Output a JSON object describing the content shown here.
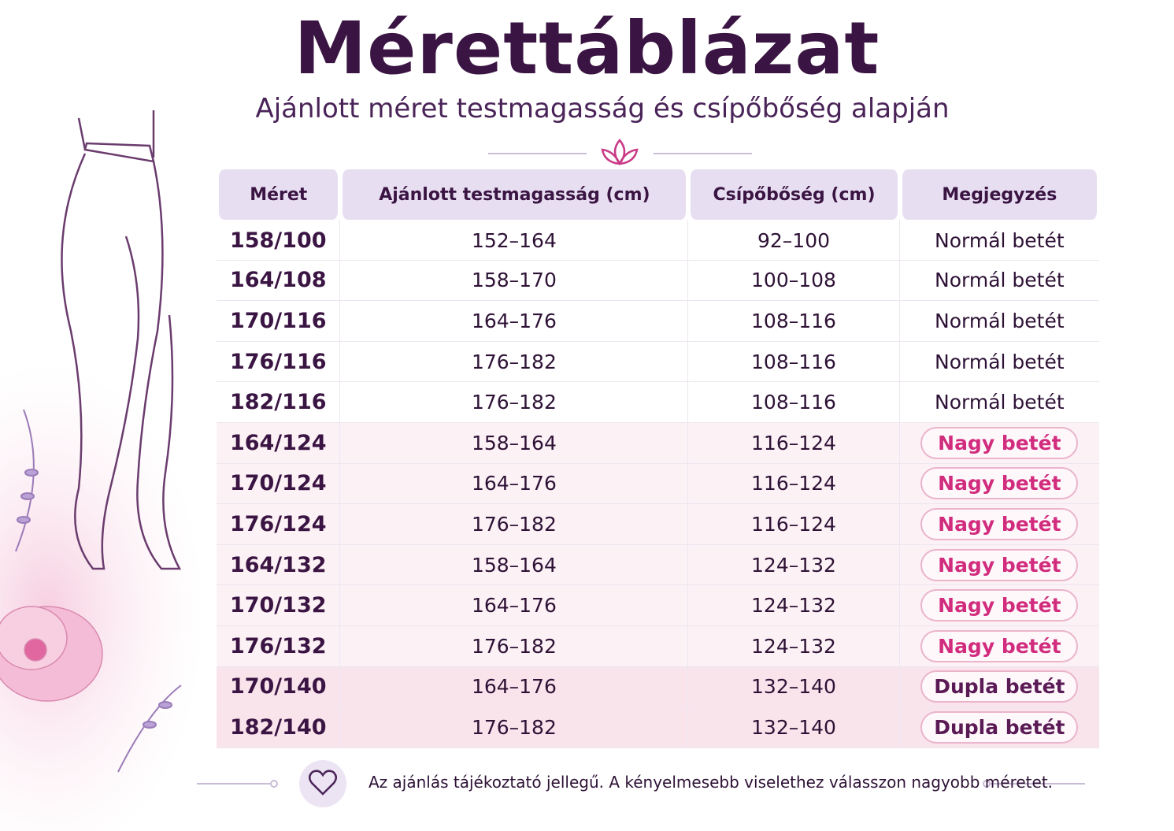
{
  "header": {
    "title": "Mérettáblázat",
    "subtitle": "Ajánlott méret testmagasság és csípőbőség alapján"
  },
  "table": {
    "columns": [
      "Méret",
      "Ajánlott testmagasság (cm)",
      "Csípőbőség (cm)",
      "Megjegyzés"
    ],
    "rows": [
      [
        "158/100",
        "152–164",
        "92–100",
        "Normál betét"
      ],
      [
        "164/108",
        "158–170",
        "100–108",
        "Normál betét"
      ],
      [
        "170/116",
        "164–176",
        "108–116",
        "Normál betét"
      ],
      [
        "176/116",
        "176–182",
        "108–116",
        "Normál betét"
      ],
      [
        "182/116",
        "176–182",
        "108–116",
        "Normál betét"
      ],
      [
        "164/124",
        "158–164",
        "116–124",
        "Nagy betét"
      ],
      [
        "170/124",
        "164–176",
        "116–124",
        "Nagy betét"
      ],
      [
        "176/124",
        "176–182",
        "116–124",
        "Nagy betét"
      ],
      [
        "164/132",
        "158–164",
        "124–132",
        "Nagy betét"
      ],
      [
        "170/132",
        "164–176",
        "124–132",
        "Nagy betét"
      ],
      [
        "176/132",
        "176–182",
        "124–132",
        "Nagy betét"
      ],
      [
        "170/140",
        "164–176",
        "132–140",
        "Dupla betét"
      ],
      [
        "182/140",
        "176–182",
        "132–140",
        "Dupla betét"
      ]
    ]
  },
  "footer": {
    "note": "Az ajánlás tájékoztató jellegű. A kényelmesebb viselethez válasszon nagyobb méretet."
  }
}
